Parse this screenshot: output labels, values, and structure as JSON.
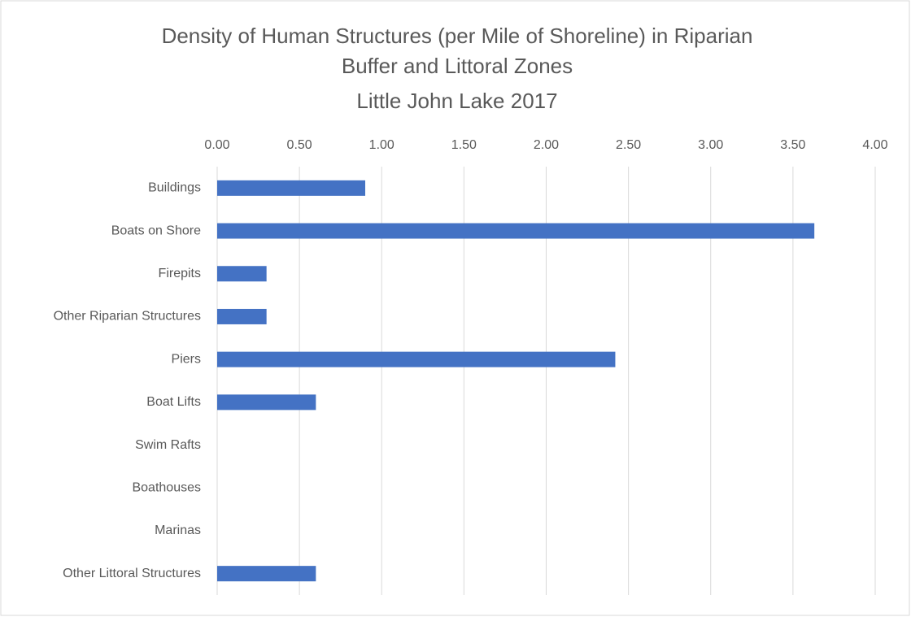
{
  "chart_data": {
    "type": "bar",
    "orientation": "horizontal",
    "title": [
      "Density of Human Structures (per Mile of Shoreline) in Riparian",
      "Buffer and Littoral Zones",
      "Little John Lake 2017"
    ],
    "categories": [
      "Buildings",
      "Boats on Shore",
      "Firepits",
      "Other Riparian Structures",
      "Piers",
      "Boat Lifts",
      "Swim Rafts",
      "Boathouses",
      "Marinas",
      "Other Littoral Structures"
    ],
    "values": [
      0.9,
      3.63,
      0.3,
      0.3,
      2.42,
      0.6,
      0,
      0,
      0,
      0.6
    ],
    "color": "#4472c4",
    "xlim": [
      0,
      4
    ],
    "xticks": [
      {
        "value": 0,
        "label": "0.00"
      },
      {
        "value": 0.5,
        "label": "0.50"
      },
      {
        "value": 1,
        "label": "1.00"
      },
      {
        "value": 1.5,
        "label": "1.50"
      },
      {
        "value": 2,
        "label": "2.00"
      },
      {
        "value": 2.5,
        "label": "2.50"
      },
      {
        "value": 3,
        "label": "3.00"
      },
      {
        "value": 3.5,
        "label": "3.50"
      },
      {
        "value": 4,
        "label": "4.00"
      }
    ],
    "grid": true
  }
}
